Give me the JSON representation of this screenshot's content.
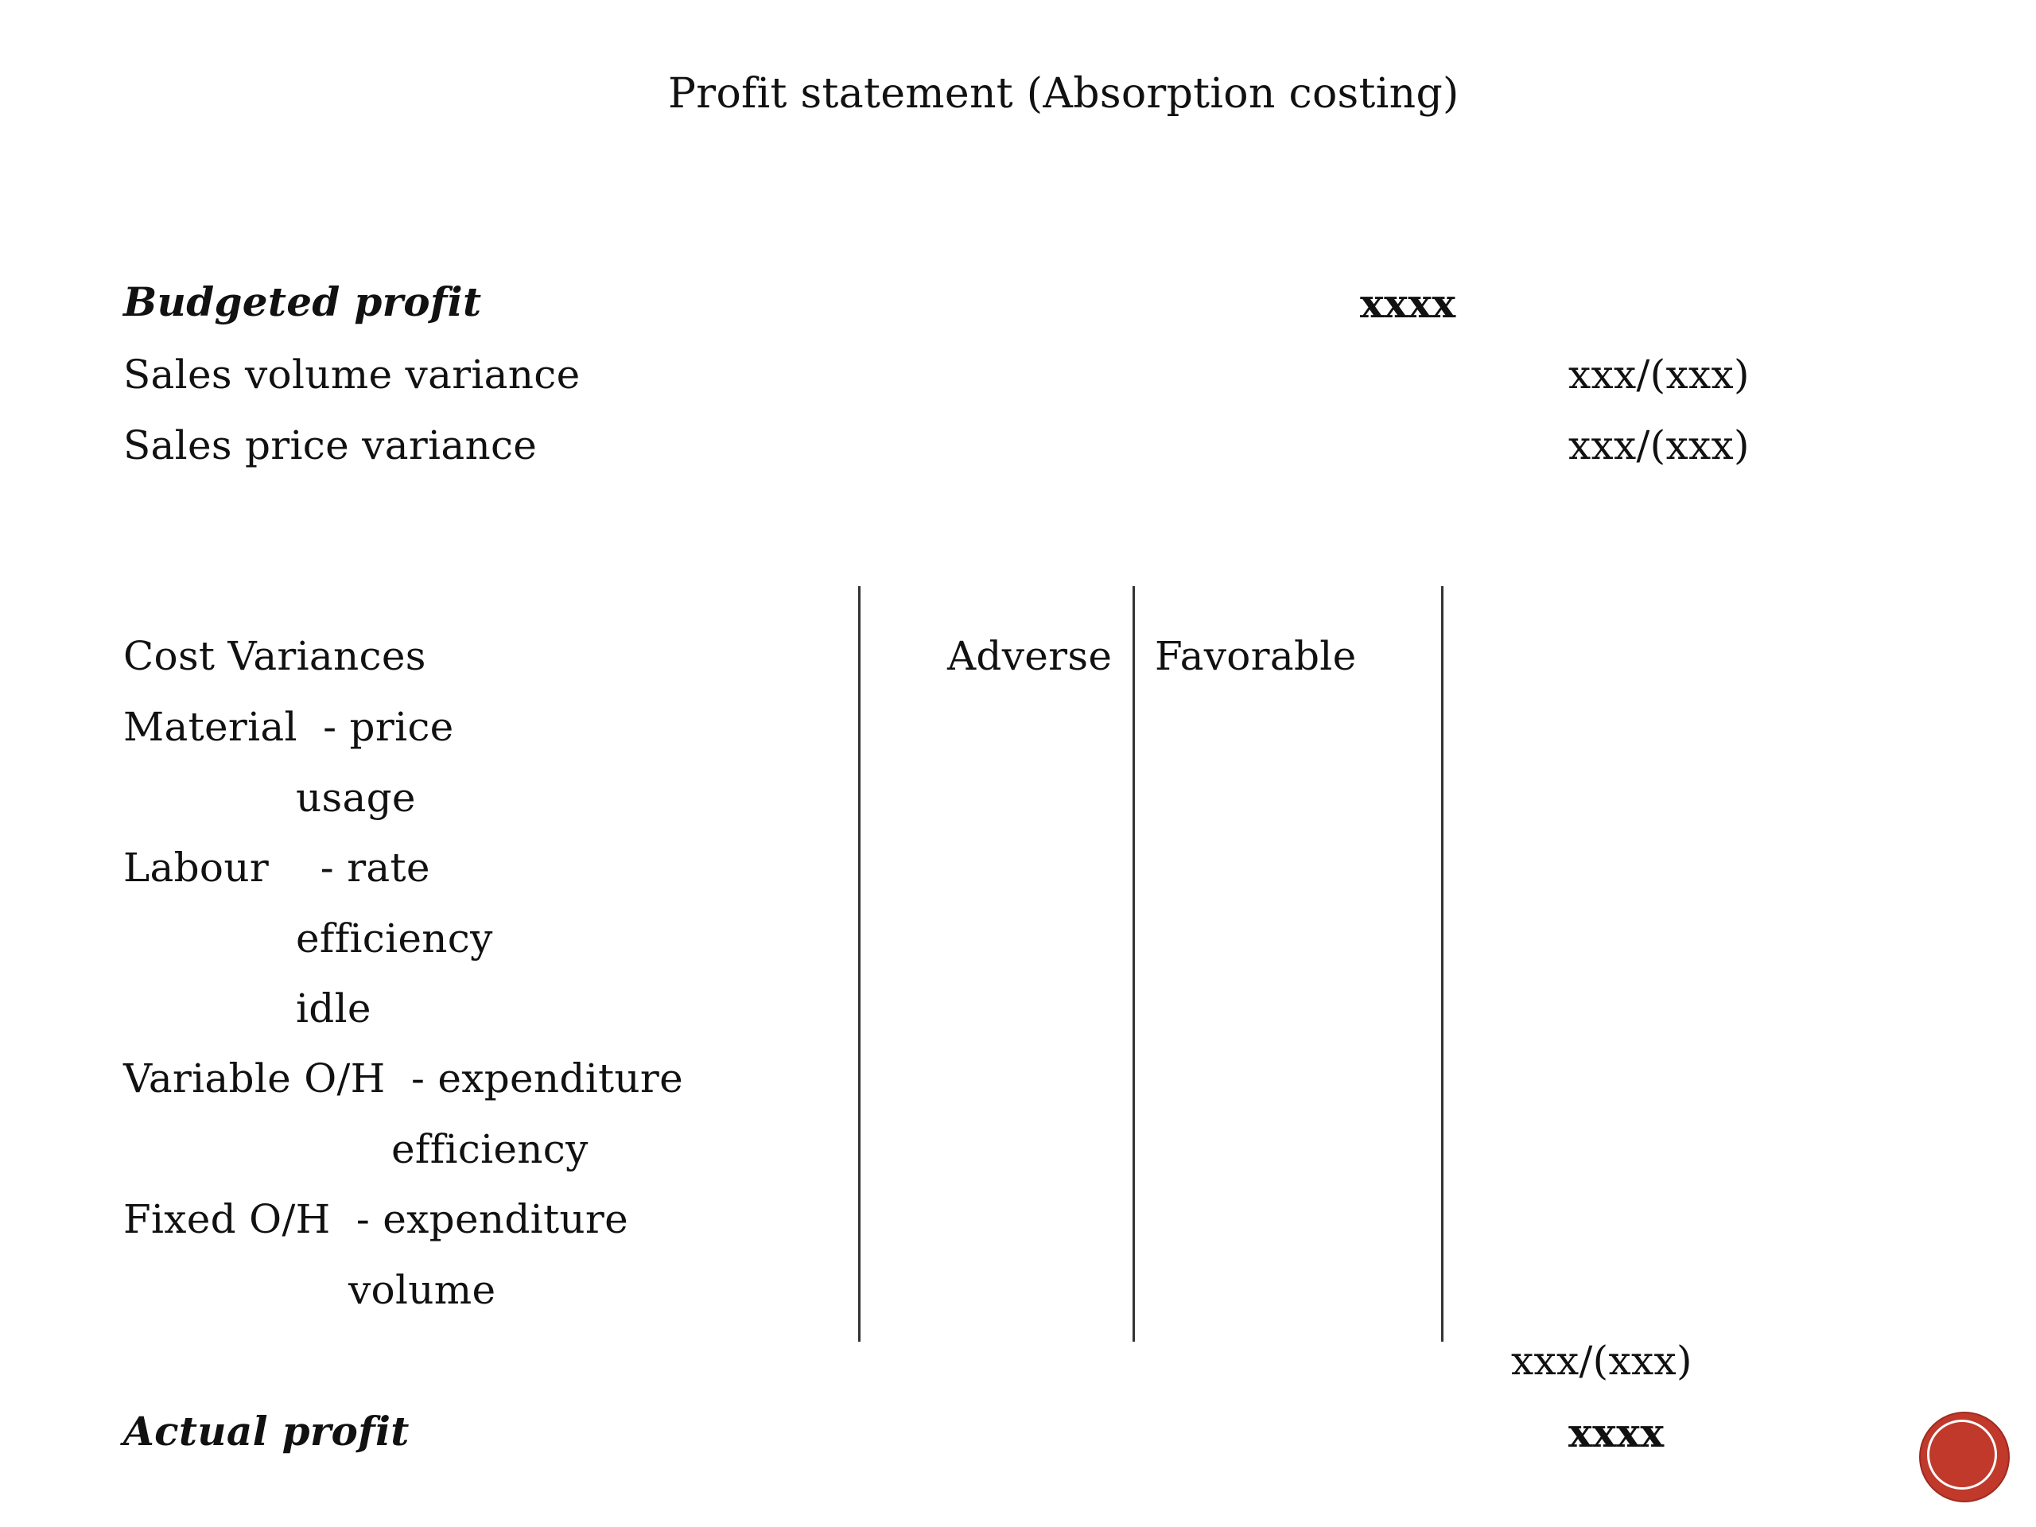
{
  "title": "Profit statement (Absorption costing)",
  "budgeted_profit": {
    "label": "Budgeted profit",
    "amount": "xxxx"
  },
  "sales_variances": [
    {
      "label": "Sales volume variance",
      "amount": "xxx/(xxx)"
    },
    {
      "label": "Sales price variance",
      "amount": "xxx/(xxx)"
    }
  ],
  "cost_variances": {
    "heading": "Cost Variances",
    "col_adverse": "Adverse",
    "col_favorable": "Favorable",
    "rows": [
      "Material  - price",
      "usage",
      "Labour    - rate",
      "efficiency",
      "idle",
      "Variable O/H  - expenditure",
      "efficiency",
      "Fixed O/H  - expenditure",
      "volume"
    ],
    "total": "xxx/(xxx)"
  },
  "actual_profit": {
    "label": "Actual profit",
    "amount": "xxxx"
  },
  "colors": {
    "nav_button": "#c0392b"
  },
  "icons": {
    "nav_button": "circle-nav-icon"
  }
}
